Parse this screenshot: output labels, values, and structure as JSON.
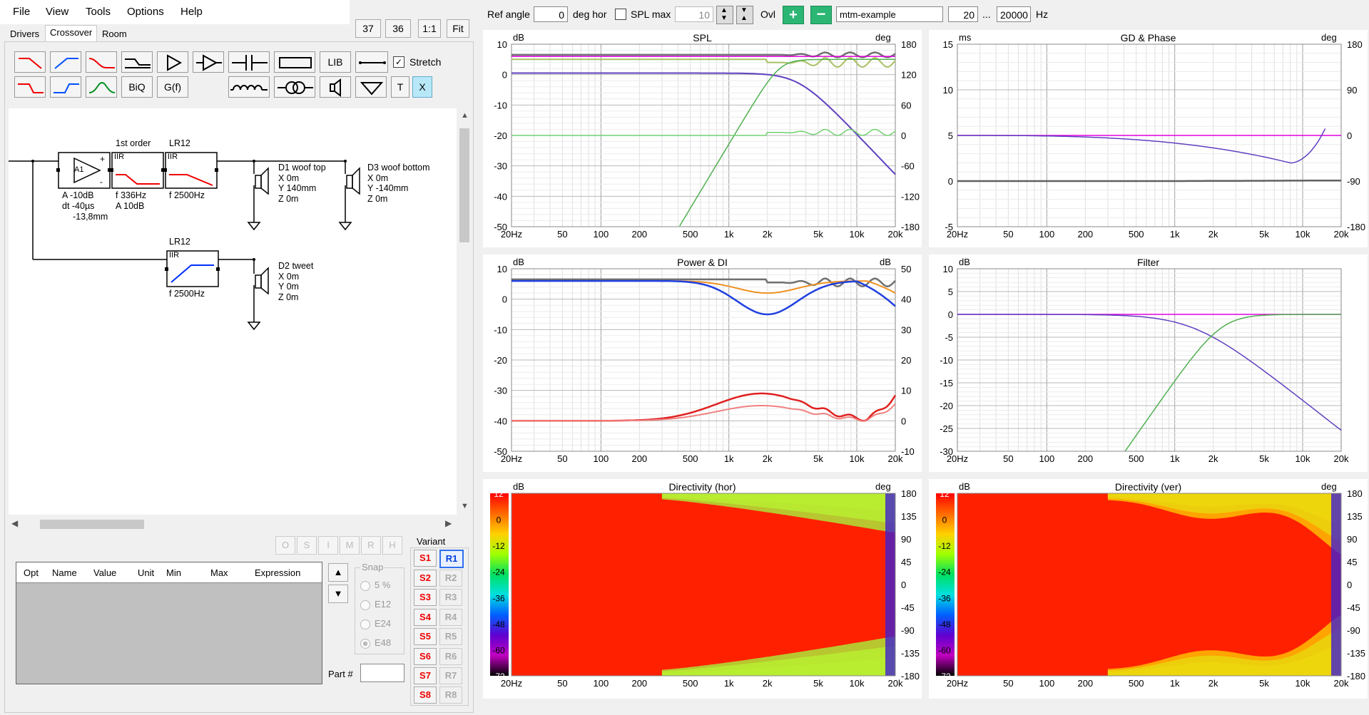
{
  "menu": {
    "file": "File",
    "view": "View",
    "tools": "Tools",
    "options": "Options",
    "help": "Help"
  },
  "tabs": {
    "drivers": "Drivers",
    "crossover": "Crossover",
    "room": "Room"
  },
  "zoom": {
    "b37": "37",
    "b36": "36",
    "one": "1:1",
    "fit": "Fit"
  },
  "toolbar": {
    "lib": "LIB",
    "stretch": "Stretch",
    "biq": "BiQ",
    "gf": "G(f)",
    "t": "T",
    "x": "X"
  },
  "schematic": {
    "amp_id": "A1",
    "amp_A": "A  -10dB",
    "amp_dt": "dt -40µs",
    "amp_dist": "-13,8mm",
    "first_order": "1st order",
    "iir": "IIR",
    "lr12": "LR12",
    "f1_f": "f   336Hz",
    "f1_A": "A  10dB",
    "f2_f": "f   2500Hz",
    "f3_f": "f   2500Hz",
    "d1_name": "D1 woof top",
    "d1_x": "X 0m",
    "d1_y": "Y 140mm",
    "d1_z": "Z 0m",
    "d3_name": "D3 woof bottom",
    "d3_x": "X 0m",
    "d3_y": "Y -140mm",
    "d3_z": "Z 0m",
    "d2_name": "D2 tweet",
    "d2_x": "X 0m",
    "d2_y": "Y 0m",
    "d2_z": "Z 0m",
    "lr12_b": "LR12",
    "iir_b": "IIR"
  },
  "param_table": {
    "headers": [
      "Opt",
      "Name",
      "Value",
      "Unit",
      "Min",
      "Max",
      "Expression"
    ]
  },
  "opt_buttons": [
    "O",
    "S",
    "I",
    "M",
    "R",
    "H"
  ],
  "snap": {
    "label": "Snap",
    "options": [
      "5 %",
      "E12",
      "E24",
      "E48"
    ],
    "selected": "E48"
  },
  "part": {
    "label": "Part #",
    "value": ""
  },
  "variant": {
    "label": "Variant",
    "s": [
      "S1",
      "S2",
      "S3",
      "S4",
      "S5",
      "S6",
      "S7",
      "S8"
    ],
    "r": [
      "R1",
      "R2",
      "R3",
      "R4",
      "R5",
      "R6",
      "R7",
      "R8"
    ],
    "active_r": "R1"
  },
  "controls": {
    "ref_angle_label": "Ref angle",
    "ref_angle": "0",
    "deg_hor": "deg hor",
    "spl_max_label": "SPL max",
    "spl_max": "10",
    "ovl": "Ovl",
    "project": "mtm-example",
    "f_min": "20",
    "ellipsis": "...",
    "f_max": "20000",
    "hz": "Hz"
  },
  "x_ticks": [
    "20Hz",
    "50",
    "100",
    "200",
    "500",
    "1k",
    "2k",
    "5k",
    "10k",
    "20k"
  ],
  "plots": {
    "spl": {
      "title": "SPL",
      "unit_l": "dB",
      "unit_r": "deg",
      "left_ticks": [
        "10",
        "0",
        "-10",
        "-20",
        "-30",
        "-40",
        "-50"
      ],
      "right_ticks": [
        "180",
        "120",
        "60",
        "0",
        "-60",
        "-120",
        "-180"
      ]
    },
    "gd": {
      "title": "GD & Phase",
      "unit_l": "ms",
      "unit_r": "deg",
      "left_ticks": [
        "15",
        "10",
        "5",
        "0",
        "-5"
      ],
      "right_ticks": [
        "180",
        "90",
        "0",
        "-90",
        "-180"
      ]
    },
    "power": {
      "title": "Power & DI",
      "unit_l": "dB",
      "unit_r": "dB",
      "left_ticks": [
        "10",
        "0",
        "-10",
        "-20",
        "-30",
        "-40",
        "-50"
      ],
      "right_ticks": [
        "50",
        "40",
        "30",
        "20",
        "10",
        "0",
        "-10"
      ]
    },
    "filter": {
      "title": "Filter",
      "unit_l": "dB",
      "left_ticks": [
        "10",
        "5",
        "0",
        "-5",
        "-10",
        "-15",
        "-20",
        "-25",
        "-30"
      ]
    },
    "dir_hor": {
      "title": "Directivity (hor)",
      "unit_l": "dB",
      "unit_r": "deg",
      "scale": [
        "12",
        "0",
        "-12",
        "-24",
        "-36",
        "-48",
        "-60",
        "-72"
      ],
      "right_ticks": [
        "180",
        "135",
        "90",
        "45",
        "0",
        "-45",
        "-90",
        "-135",
        "-180"
      ]
    },
    "dir_ver": {
      "title": "Directivity (ver)",
      "unit_l": "dB",
      "unit_r": "deg",
      "scale": [
        "12",
        "0",
        "-12",
        "-24",
        "-36",
        "-48",
        "-60",
        "-72"
      ],
      "right_ticks": [
        "180",
        "135",
        "90",
        "45",
        "0",
        "-45",
        "-90",
        "-135",
        "-180"
      ]
    }
  }
}
